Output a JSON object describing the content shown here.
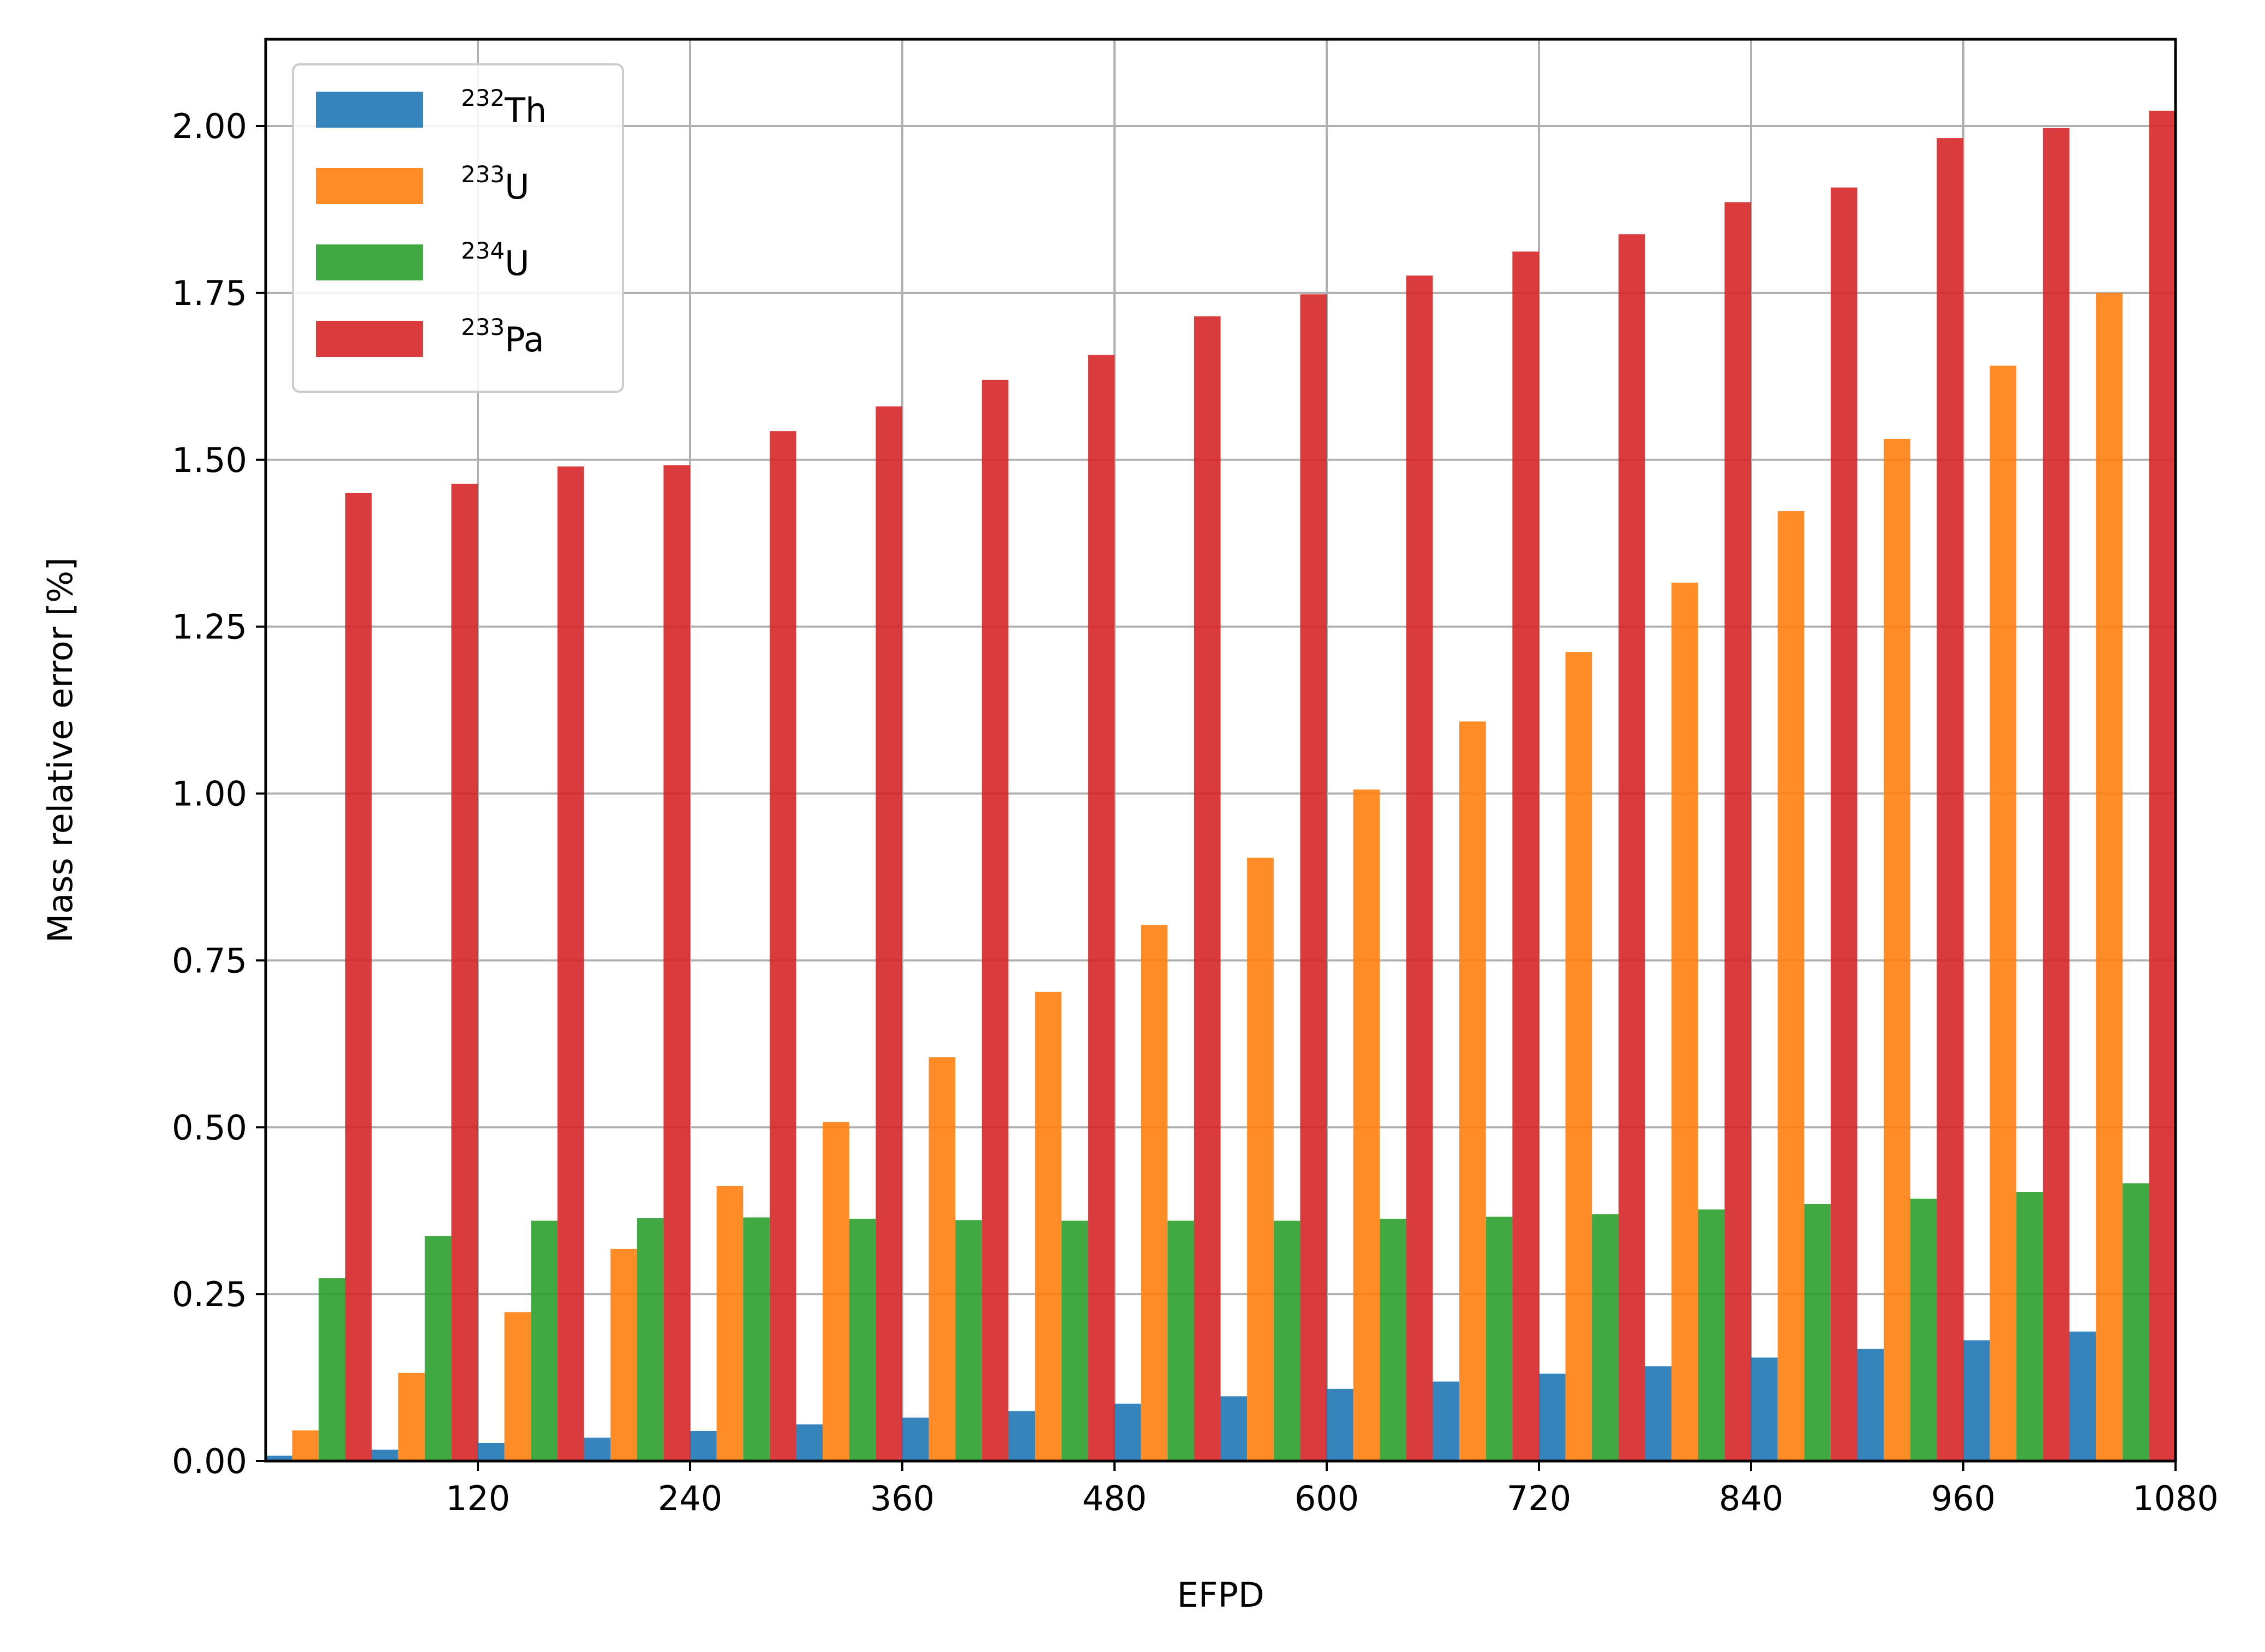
{
  "chart_data": {
    "type": "bar",
    "xlabel": "EFPD",
    "ylabel": "Mass relative error [%]",
    "xlim": [
      0,
      1080
    ],
    "ylim": [
      0,
      2.13
    ],
    "grid": true,
    "legend_position": "top-left",
    "x_tick_labels": [
      "120",
      "240",
      "360",
      "480",
      "600",
      "720",
      "840",
      "960",
      "1080"
    ],
    "y_tick_labels": [
      "0.00",
      "0.25",
      "0.50",
      "0.75",
      "1.00",
      "1.25",
      "1.50",
      "1.75",
      "2.00"
    ],
    "x": [
      60,
      120,
      180,
      240,
      300,
      360,
      420,
      480,
      540,
      600,
      660,
      720,
      780,
      840,
      900,
      960,
      1020,
      1080
    ],
    "series": [
      {
        "sup": "232",
        "base": "Th",
        "color": "#1f77b4",
        "values": [
          0.008,
          0.017,
          0.027,
          0.035,
          0.045,
          0.055,
          0.065,
          0.075,
          0.086,
          0.097,
          0.108,
          0.119,
          0.131,
          0.142,
          0.155,
          0.168,
          0.181,
          0.194
        ]
      },
      {
        "sup": "233",
        "base": "U",
        "color": "#ff7f0e",
        "values": [
          0.046,
          0.132,
          0.223,
          0.318,
          0.412,
          0.508,
          0.605,
          0.703,
          0.803,
          0.904,
          1.006,
          1.108,
          1.212,
          1.316,
          1.423,
          1.531,
          1.641,
          1.75
        ]
      },
      {
        "sup": "234",
        "base": "U",
        "color": "#2ca02c",
        "values": [
          0.274,
          0.337,
          0.36,
          0.364,
          0.365,
          0.363,
          0.361,
          0.36,
          0.36,
          0.36,
          0.363,
          0.366,
          0.37,
          0.377,
          0.385,
          0.393,
          0.403,
          0.416
        ]
      },
      {
        "sup": "233",
        "base": "Pa",
        "color": "#d62728",
        "values": [
          1.45,
          1.464,
          1.49,
          1.492,
          1.543,
          1.58,
          1.62,
          1.657,
          1.715,
          1.748,
          1.776,
          1.812,
          1.838,
          1.886,
          1.908,
          1.982,
          1.997,
          2.023
        ]
      }
    ]
  }
}
